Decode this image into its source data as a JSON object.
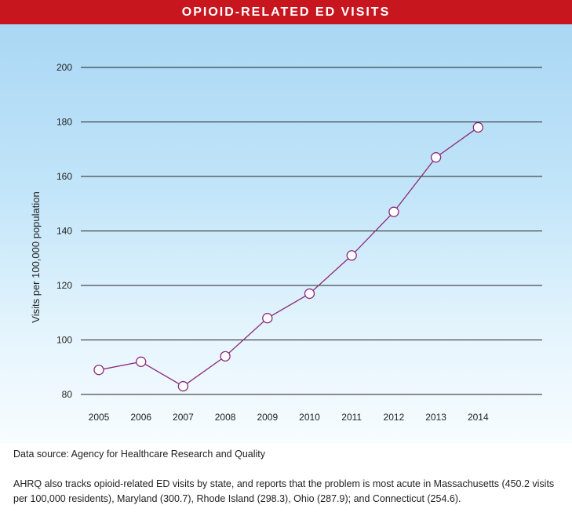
{
  "header": {
    "title": "OPIOID-RELATED ED VISITS"
  },
  "chart_data": {
    "type": "line",
    "title": "OPIOID-RELATED ED VISITS",
    "ylabel": "Visits per 100,000 population",
    "xlabel": "",
    "categories": [
      "2005",
      "2006",
      "2007",
      "2008",
      "2009",
      "2010",
      "2011",
      "2012",
      "2013",
      "2014"
    ],
    "series": [
      {
        "values": [
          89,
          92,
          83,
          94,
          108,
          117,
          131,
          147,
          167,
          178
        ]
      }
    ],
    "ylim": [
      80,
      200
    ],
    "yticks": [
      "80",
      "100",
      "120",
      "140",
      "160",
      "180",
      "200"
    ],
    "grid": true,
    "colors": {
      "line": "#8b2a7a",
      "marker_fill": "#ffffff",
      "grid": "#222222"
    }
  },
  "footer": {
    "source": "Data source: Agency for Healthcare Research and Quality",
    "note": "AHRQ also tracks opioid-related ED visits by state, and reports that the problem is most acute in Massachusetts (450.2 visits per 100,000 residents), Maryland (300.7), Rhode Island (298.3), Ohio (287.9); and Connecticut (254.6)."
  }
}
